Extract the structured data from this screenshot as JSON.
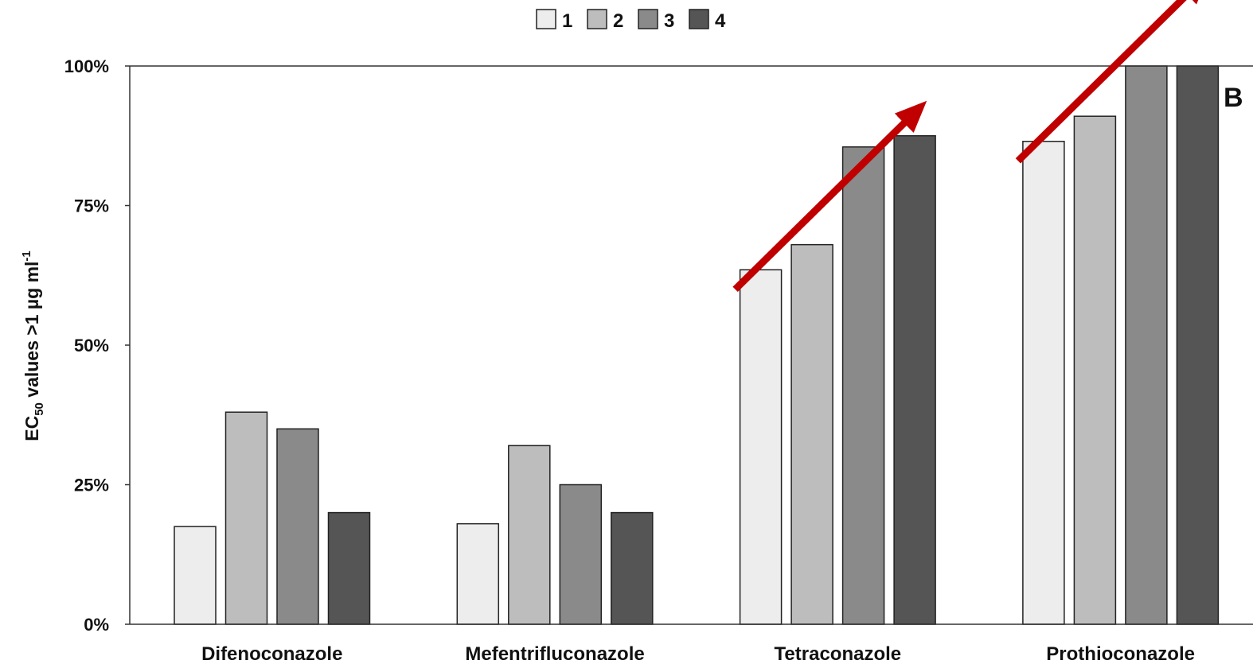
{
  "chart_data": {
    "type": "bar",
    "categories": [
      "Difenoconazole",
      "Mefentrifluconazole",
      "Tetraconazole",
      "Prothioconazole"
    ],
    "series": [
      {
        "name": "1",
        "values": [
          17.5,
          18,
          63.5,
          86.5
        ],
        "color": "#ededed"
      },
      {
        "name": "2",
        "values": [
          38,
          32,
          68,
          91
        ],
        "color": "#bdbdbd"
      },
      {
        "name": "3",
        "values": [
          35,
          25,
          85.5,
          100
        ],
        "color": "#8a8a8a"
      },
      {
        "name": "4",
        "values": [
          20,
          20,
          87.5,
          100
        ],
        "color": "#555555"
      }
    ],
    "ylabel_main": "EC",
    "ylabel_sub": "50",
    "ylabel_rest": " values >1 µg ml",
    "ylabel_sup": "-1",
    "ylim": [
      0,
      100
    ],
    "yticks": [
      0,
      25,
      50,
      75,
      100
    ],
    "ytick_labels": [
      "0%",
      "25%",
      "50%",
      "75%",
      "100%"
    ],
    "panel_label": "B",
    "legend_position": "top-center",
    "annotations": [
      {
        "type": "trend-arrow",
        "category": "Tetraconazole",
        "color": "#c00000"
      },
      {
        "type": "trend-arrow",
        "category": "Prothioconazole",
        "color": "#c00000"
      }
    ]
  }
}
